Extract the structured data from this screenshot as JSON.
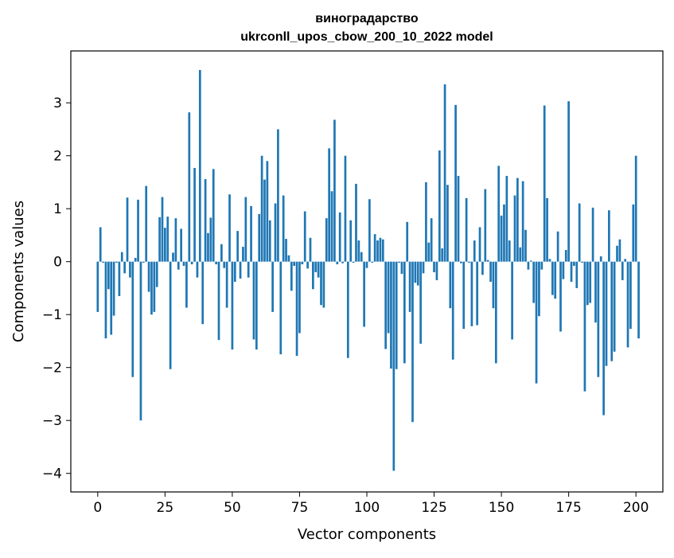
{
  "chart_data": {
    "type": "bar",
    "title_line1": "виноградарство",
    "title_line2": "ukrconll_upos_cbow_200_10_2022 model",
    "xlabel": "Vector components",
    "ylabel": "Components values",
    "xlim": [
      -10,
      210
    ],
    "ylim": [
      -4.35,
      3.98
    ],
    "xticks": [
      0,
      25,
      50,
      75,
      100,
      125,
      150,
      175,
      200
    ],
    "yticks": [
      -4,
      -3,
      -2,
      -1,
      0,
      1,
      2,
      3
    ],
    "xtick_labels": [
      "0",
      "25",
      "50",
      "75",
      "100",
      "125",
      "150",
      "175",
      "200"
    ],
    "ytick_labels": [
      "−4",
      "−3",
      "−2",
      "−1",
      "0",
      "1",
      "2",
      "3"
    ],
    "bar_color": "#1f77b4",
    "grid": false,
    "values": [
      -0.95,
      0.65,
      -0.02,
      -1.45,
      -0.52,
      -1.38,
      -1.02,
      -0.02,
      -0.65,
      0.18,
      -0.22,
      1.21,
      -0.3,
      -2.18,
      0.07,
      1.17,
      -3.0,
      -0.02,
      1.43,
      -0.57,
      -1.0,
      -0.95,
      -0.48,
      0.84,
      1.22,
      0.64,
      0.85,
      -2.03,
      0.17,
      0.82,
      -0.15,
      0.62,
      -0.08,
      -0.87,
      2.82,
      -0.05,
      1.77,
      -0.3,
      3.62,
      -1.18,
      1.56,
      0.54,
      0.83,
      1.75,
      -0.05,
      -1.48,
      0.33,
      -0.12,
      -0.87,
      1.27,
      -1.66,
      -0.38,
      0.58,
      -0.32,
      0.28,
      1.22,
      -0.3,
      1.05,
      -1.47,
      -1.66,
      0.9,
      2.0,
      1.55,
      1.9,
      0.78,
      -0.95,
      1.1,
      2.5,
      -1.75,
      1.25,
      0.43,
      0.12,
      -0.55,
      -0.08,
      -1.78,
      -1.35,
      -0.05,
      0.95,
      -0.13,
      0.45,
      -0.52,
      -0.2,
      -0.3,
      -0.82,
      -0.87,
      0.82,
      2.14,
      1.33,
      2.68,
      -0.05,
      0.93,
      -0.03,
      2.0,
      -1.82,
      0.78,
      -0.02,
      1.47,
      0.4,
      0.18,
      -1.23,
      -0.12,
      1.18,
      -0.02,
      0.52,
      0.4,
      0.45,
      0.42,
      -1.65,
      -1.35,
      -2.02,
      -3.95,
      -2.03,
      -0.02,
      -0.23,
      -1.92,
      0.75,
      -0.95,
      -3.03,
      -0.4,
      -0.45,
      -1.55,
      -0.22,
      1.5,
      0.36,
      0.82,
      -0.2,
      -0.35,
      2.1,
      0.25,
      3.35,
      1.45,
      -0.88,
      -1.85,
      2.96,
      1.62,
      -0.03,
      -1.27,
      1.2,
      -0.02,
      -1.22,
      0.4,
      -1.2,
      0.65,
      -0.25,
      1.37,
      0.03,
      -0.38,
      -0.88,
      -1.92,
      1.81,
      0.87,
      1.08,
      1.62,
      0.4,
      -1.47,
      1.25,
      1.58,
      0.27,
      1.52,
      0.6,
      -0.15,
      0.02,
      -0.78,
      -2.3,
      -1.03,
      -0.15,
      2.95,
      1.2,
      0.05,
      -0.63,
      -0.7,
      0.57,
      -1.32,
      -0.33,
      0.22,
      3.03,
      -0.38,
      -0.08,
      -0.5,
      1.1,
      -0.02,
      -2.45,
      -0.82,
      -0.78,
      1.02,
      -1.15,
      -2.18,
      0.1,
      -2.9,
      -1.97,
      0.97,
      -1.88,
      -1.7,
      0.3,
      0.42,
      -0.35,
      0.05,
      -1.62,
      -1.27,
      1.08,
      2.0,
      -1.45
    ]
  }
}
